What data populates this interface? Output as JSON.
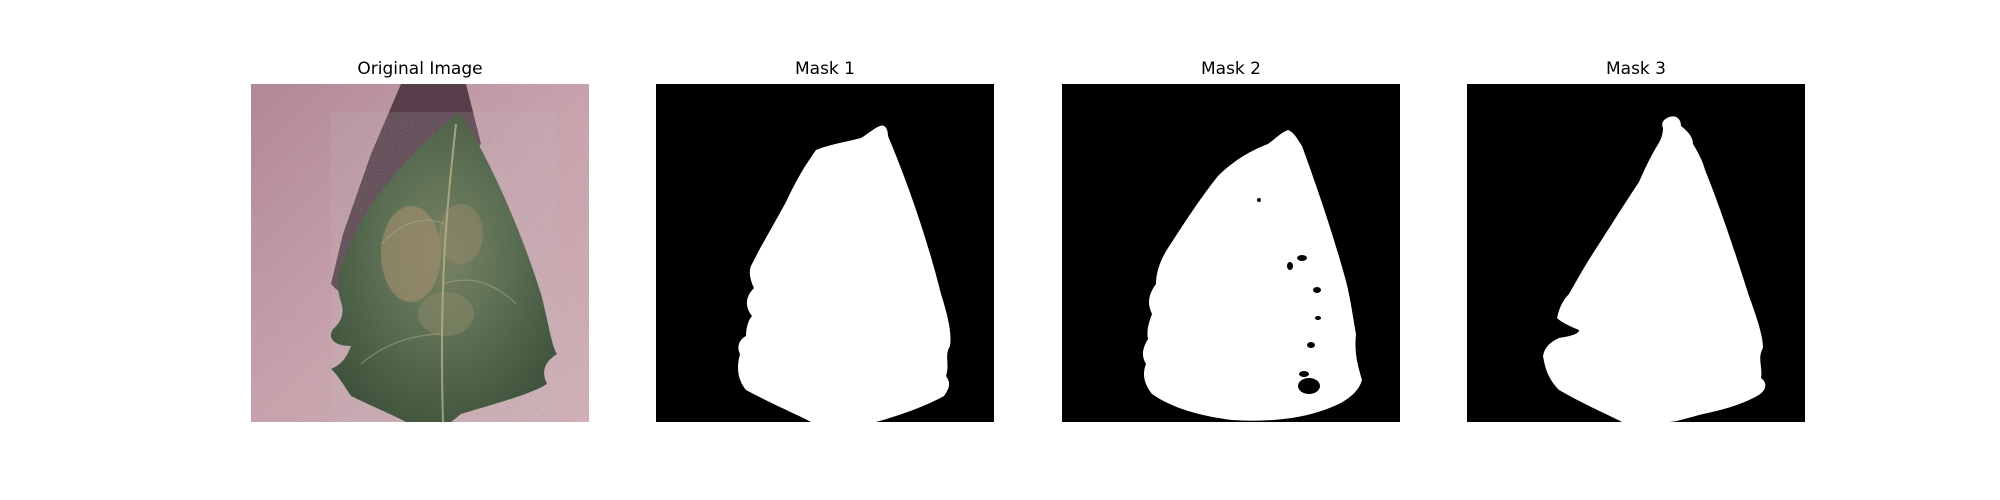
{
  "panels": [
    {
      "title": "Original Image"
    },
    {
      "title": "Mask 1"
    },
    {
      "title": "Mask 2"
    },
    {
      "title": "Mask 3"
    }
  ],
  "colors": {
    "background_pink": "#c9a3ad",
    "shadow": "#5a3d46",
    "leaf_green": "#5e7356",
    "leaf_dark": "#3f513b",
    "lesion_tan": "#9a8a6a",
    "mask_bg": "#000000",
    "mask_fg": "#ffffff"
  }
}
